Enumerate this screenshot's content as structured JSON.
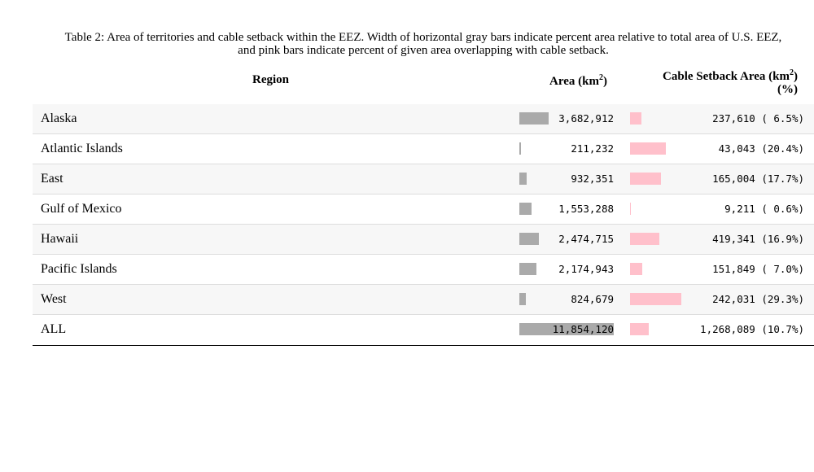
{
  "caption": {
    "line1": "Table 2: Area of territories and cable setback within the EEZ. Width of horizontal gray bars indicate percent area relative to total area of U.S. EEZ,",
    "line2": "and pink bars indicate percent of given area overlapping with cable setback."
  },
  "headers": {
    "region": "Region",
    "area_prefix": "Area (km",
    "area_sup": "2",
    "area_suffix": ")",
    "cable_prefix": "Cable Setback Area (km",
    "cable_sup": "2",
    "cable_suffix": ")",
    "cable_line2": "(%)"
  },
  "colors": {
    "area_bar": "#aaaaaa",
    "cable_bar": "#ffc0cb"
  },
  "chart_data": {
    "type": "table",
    "columns": [
      "Region",
      "Area (km2)",
      "Cable Setback Area (km2) (%)"
    ],
    "rows": [
      {
        "region": "Alaska",
        "area": 3682912,
        "area_text": "3,682,912",
        "cable": 237610,
        "cable_text": "237,610",
        "pct": 6.5,
        "pct_text": "( 6.5%)"
      },
      {
        "region": "Atlantic Islands",
        "area": 211232,
        "area_text": "211,232",
        "cable": 43043,
        "cable_text": "43,043",
        "pct": 20.4,
        "pct_text": "(20.4%)"
      },
      {
        "region": "East",
        "area": 932351,
        "area_text": "932,351",
        "cable": 165004,
        "cable_text": "165,004",
        "pct": 17.7,
        "pct_text": "(17.7%)"
      },
      {
        "region": "Gulf of Mexico",
        "area": 1553288,
        "area_text": "1,553,288",
        "cable": 9211,
        "cable_text": "9,211",
        "pct": 0.6,
        "pct_text": "( 0.6%)"
      },
      {
        "region": "Hawaii",
        "area": 2474715,
        "area_text": "2,474,715",
        "cable": 419341,
        "cable_text": "419,341",
        "pct": 16.9,
        "pct_text": "(16.9%)"
      },
      {
        "region": "Pacific Islands",
        "area": 2174943,
        "area_text": "2,174,943",
        "cable": 151849,
        "cable_text": "151,849",
        "pct": 7.0,
        "pct_text": "( 7.0%)"
      },
      {
        "region": "West",
        "area": 824679,
        "area_text": "824,679",
        "cable": 242031,
        "cable_text": "242,031",
        "pct": 29.3,
        "pct_text": "(29.3%)"
      },
      {
        "region": "ALL",
        "area": 11854120,
        "area_text": "11,854,120",
        "cable": 1268089,
        "cable_text": "1,268,089",
        "pct": 10.7,
        "pct_text": "(10.7%)"
      }
    ]
  }
}
